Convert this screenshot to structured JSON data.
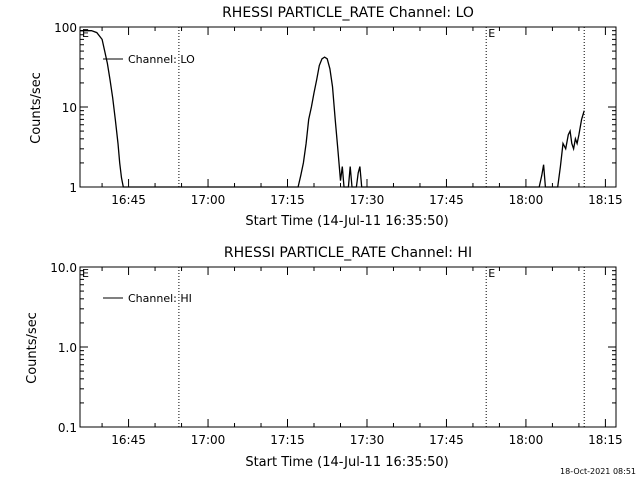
{
  "footer_timestamp": "18-Oct-2021 08:51",
  "chart_data": [
    {
      "type": "line",
      "title": "RHESSI PARTICLE_RATE Channel: LO",
      "xlabel": "Start Time (14-Jul-11 16:35:50)",
      "ylabel": "Counts/sec",
      "yscale": "log",
      "ylim": [
        1,
        100
      ],
      "xlim": [
        "16:35:50",
        "18:17:00"
      ],
      "xticks": [
        "16:45",
        "17:00",
        "17:15",
        "17:30",
        "17:45",
        "18:00",
        "18:15"
      ],
      "yticks": [
        "1",
        "10",
        "100"
      ],
      "legend": {
        "entries": [
          "Channel: LO"
        ],
        "placement": "top-left"
      },
      "event_markers": [
        {
          "time": "16:35:50",
          "label": "E"
        },
        {
          "time": "17:52:30",
          "label": "E"
        }
      ],
      "vertical_lines": [
        "16:54:30",
        "17:52:30",
        "18:11:00"
      ],
      "series": [
        {
          "name": "Channel: LO",
          "x": [
            "16:35:50",
            "16:37:00",
            "16:38:00",
            "16:39:00",
            "16:40:00",
            "16:40:30",
            "16:41:00",
            "16:41:30",
            "16:42:00",
            "16:42:30",
            "16:43:00",
            "16:43:20",
            "16:43:40",
            "16:44:00",
            "17:17:00",
            "17:17:30",
            "17:18:00",
            "17:18:30",
            "17:19:00",
            "17:19:30",
            "17:20:00",
            "17:20:30",
            "17:21:00",
            "17:21:30",
            "17:22:00",
            "17:22:30",
            "17:23:00",
            "17:23:30",
            "17:24:00",
            "17:24:30",
            "17:25:00",
            "17:25:20",
            "17:25:40",
            "17:26:00",
            "17:26:30",
            "17:26:50",
            "17:27:10",
            "17:28:00",
            "17:28:20",
            "17:28:40",
            "17:29:00",
            "18:02:30",
            "18:03:00",
            "18:03:20",
            "18:03:40",
            "18:06:00",
            "18:06:30",
            "18:07:00",
            "18:07:30",
            "18:08:00",
            "18:08:20",
            "18:08:40",
            "18:09:00",
            "18:09:20",
            "18:09:40",
            "18:10:00",
            "18:10:30",
            "18:11:00"
          ],
          "y": [
            90,
            90,
            90,
            85,
            70,
            50,
            35,
            22,
            13,
            7,
            3.5,
            2,
            1.3,
            1,
            1,
            1.4,
            2,
            3.5,
            7,
            10,
            15,
            22,
            33,
            40,
            42,
            40,
            30,
            18,
            7,
            3,
            1.2,
            1.8,
            1,
            1,
            1,
            1.8,
            1,
            1,
            1.5,
            1.8,
            1,
            1,
            1.4,
            1.9,
            1,
            1,
            1.8,
            3.5,
            3,
            4.5,
            5,
            3.5,
            3,
            4,
            3.5,
            4.5,
            7,
            9
          ]
        }
      ]
    },
    {
      "type": "line",
      "title": "RHESSI PARTICLE_RATE Channel: HI",
      "xlabel": "Start Time (14-Jul-11 16:35:50)",
      "ylabel": "Counts/sec",
      "yscale": "log",
      "ylim": [
        0.1,
        10
      ],
      "xlim": [
        "16:35:50",
        "18:17:00"
      ],
      "xticks": [
        "16:45",
        "17:00",
        "17:15",
        "17:30",
        "17:45",
        "18:00",
        "18:15"
      ],
      "yticks": [
        "0.1",
        "1.0",
        "10.0"
      ],
      "legend": {
        "entries": [
          "Channel: HI"
        ],
        "placement": "top-left"
      },
      "event_markers": [
        {
          "time": "16:35:50",
          "label": "E"
        },
        {
          "time": "17:52:30",
          "label": "E"
        }
      ],
      "vertical_lines": [
        "16:54:30",
        "17:52:30",
        "18:11:00"
      ],
      "series": [
        {
          "name": "Channel: HI",
          "x": [],
          "y": []
        }
      ]
    }
  ]
}
